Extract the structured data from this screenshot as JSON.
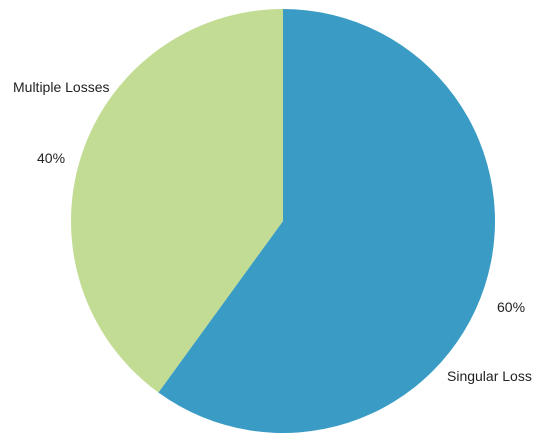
{
  "chart_data": {
    "type": "pie",
    "slices": [
      {
        "label": "Singular Loss",
        "value": 60,
        "value_label": "60%",
        "color": "#3a9cc4"
      },
      {
        "label": "Multiple Losses",
        "value": 40,
        "value_label": "40%",
        "color": "#c2dc94"
      }
    ],
    "start_angle_deg": 0,
    "direction": "clockwise",
    "legend": "none"
  }
}
